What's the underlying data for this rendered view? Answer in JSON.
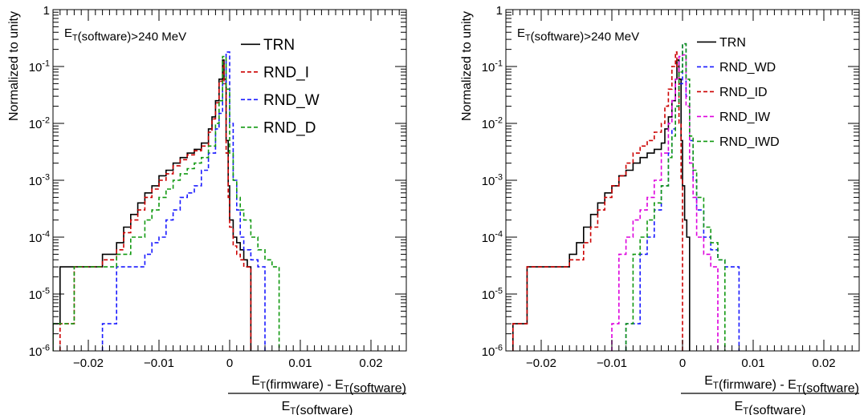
{
  "chart_data": [
    {
      "type": "line",
      "annotation": "E_T(software)>240 MeV",
      "ylabel": "Normalized to unity",
      "xlabel": {
        "numerator": "E_T(firmware) - E_T(software)",
        "denominator": "E_T(software)"
      },
      "xlim": [
        -0.025,
        0.025
      ],
      "ylim": [
        1e-06,
        1
      ],
      "yscale": "log",
      "xticks": [
        "−0.02",
        "−0.01",
        "0",
        "0.01",
        "0.02"
      ],
      "yticks": [
        "10^-6",
        "10^-5",
        "10^-4",
        "10^-3",
        "10^-2",
        "10^-1",
        "1"
      ],
      "legend_position": "top-right",
      "series": [
        {
          "name": "TRN",
          "color": "#000000",
          "style": "solid",
          "x": [
            -0.025,
            -0.024,
            -0.022,
            -0.02,
            -0.018,
            -0.016,
            -0.015,
            -0.014,
            -0.013,
            -0.012,
            -0.011,
            -0.01,
            -0.009,
            -0.008,
            -0.007,
            -0.006,
            -0.005,
            -0.004,
            -0.003,
            -0.0025,
            -0.002,
            -0.0015,
            -0.001,
            -0.0008,
            -0.0005,
            -0.0002,
            0,
            0.0005,
            0.001,
            0.0015,
            0.002,
            0.0025,
            0.003
          ],
          "y": [
            3e-06,
            3e-05,
            3e-05,
            3e-05,
            5e-05,
            8e-05,
            0.00015,
            0.00025,
            0.0004,
            0.0006,
            0.0008,
            0.0012,
            0.0015,
            0.002,
            0.0025,
            0.003,
            0.0035,
            0.0045,
            0.008,
            0.013,
            0.025,
            0.06,
            0.13,
            0.06,
            0.005,
            0.0008,
            0.0002,
            0.0001,
            8e-05,
            6e-05,
            4e-05,
            3e-05,
            3e-06
          ]
        },
        {
          "name": "RND_I",
          "color": "#cc0000",
          "style": "dashed",
          "x": [
            -0.024,
            -0.022,
            -0.02,
            -0.018,
            -0.016,
            -0.015,
            -0.014,
            -0.013,
            -0.012,
            -0.011,
            -0.01,
            -0.009,
            -0.008,
            -0.007,
            -0.006,
            -0.005,
            -0.004,
            -0.003,
            -0.0025,
            -0.002,
            -0.0015,
            -0.001,
            -0.0008,
            -0.0005,
            -0.0002,
            0,
            0.0005,
            0.001,
            0.0015,
            0.002,
            0.0025,
            0.003
          ],
          "y": [
            3e-06,
            3e-05,
            3e-05,
            4e-05,
            6e-05,
            0.00012,
            0.0002,
            0.0003,
            0.0005,
            0.0007,
            0.001,
            0.0013,
            0.0018,
            0.0023,
            0.0028,
            0.0033,
            0.004,
            0.007,
            0.012,
            0.023,
            0.055,
            0.12,
            0.05,
            0.003,
            0.0005,
            0.00015,
            7e-05,
            5e-05,
            4e-05,
            3e-05,
            3e-05,
            3e-06
          ]
        },
        {
          "name": "RND_W",
          "color": "#1a1aff",
          "style": "dashed",
          "x": [
            -0.018,
            -0.016,
            -0.014,
            -0.013,
            -0.012,
            -0.011,
            -0.01,
            -0.009,
            -0.008,
            -0.007,
            -0.006,
            -0.005,
            -0.004,
            -0.003,
            -0.002,
            -0.0015,
            -0.001,
            -0.0005,
            0,
            0.0005,
            0.001,
            0.0015,
            0.002,
            0.003,
            0.004,
            0.005
          ],
          "y": [
            3e-06,
            3e-05,
            3e-05,
            3e-05,
            5e-05,
            8e-05,
            0.0001,
            0.0002,
            0.0003,
            0.0005,
            0.0006,
            0.0008,
            0.0015,
            0.003,
            0.008,
            0.015,
            0.05,
            0.18,
            0.01,
            0.001,
            0.0003,
            0.0001,
            6e-05,
            4e-05,
            3e-05,
            3e-06
          ]
        },
        {
          "name": "RND_D",
          "color": "#119911",
          "style": "dashed",
          "x": [
            -0.025,
            -0.022,
            -0.02,
            -0.018,
            -0.016,
            -0.014,
            -0.012,
            -0.011,
            -0.01,
            -0.009,
            -0.008,
            -0.007,
            -0.006,
            -0.005,
            -0.004,
            -0.003,
            -0.002,
            -0.0015,
            -0.001,
            -0.0005,
            0,
            0.0005,
            0.001,
            0.0015,
            0.002,
            0.003,
            0.004,
            0.005,
            0.006,
            0.007
          ],
          "y": [
            3e-06,
            3e-05,
            3e-05,
            3e-05,
            5e-05,
            0.0001,
            0.0002,
            0.0003,
            0.0005,
            0.0007,
            0.001,
            0.0013,
            0.0016,
            0.002,
            0.0025,
            0.004,
            0.01,
            0.025,
            0.15,
            0.04,
            0.003,
            0.001,
            0.0005,
            0.0003,
            0.0002,
            0.0001,
            6e-05,
            4e-05,
            3e-05,
            3e-06
          ]
        }
      ]
    },
    {
      "type": "line",
      "annotation": "E_T(software)>240 MeV",
      "ylabel": "Normalized to unity",
      "xlabel": {
        "numerator": "E_T(firmware) - E_T(software)",
        "denominator": "E_T(software)"
      },
      "xlim": [
        -0.025,
        0.025
      ],
      "ylim": [
        1e-06,
        1
      ],
      "yscale": "log",
      "xticks": [
        "−0.02",
        "−0.01",
        "0",
        "0.01",
        "0.02"
      ],
      "yticks": [
        "10^-6",
        "10^-5",
        "10^-4",
        "10^-3",
        "10^-2",
        "10^-1",
        "1"
      ],
      "legend_position": "top-right",
      "series": [
        {
          "name": "TRN",
          "color": "#000000",
          "style": "solid",
          "x": [
            -0.024,
            -0.022,
            -0.02,
            -0.018,
            -0.016,
            -0.015,
            -0.014,
            -0.013,
            -0.012,
            -0.011,
            -0.01,
            -0.009,
            -0.008,
            -0.007,
            -0.006,
            -0.005,
            -0.004,
            -0.003,
            -0.0025,
            -0.002,
            -0.0015,
            -0.001,
            -0.0008,
            -0.0005,
            -0.0002,
            0,
            0.0003,
            0.0006,
            0.001
          ],
          "y": [
            3e-06,
            3e-05,
            3e-05,
            3e-05,
            5e-05,
            8e-05,
            0.00015,
            0.00025,
            0.0004,
            0.0006,
            0.0008,
            0.0012,
            0.0015,
            0.002,
            0.0025,
            0.003,
            0.0035,
            0.0045,
            0.008,
            0.013,
            0.025,
            0.06,
            0.13,
            0.06,
            0.005,
            0.0008,
            0.0002,
            0.0001,
            3e-06
          ]
        },
        {
          "name": "RND_WD",
          "color": "#1a1aff",
          "style": "dashed",
          "x": [
            -0.008,
            -0.006,
            -0.005,
            -0.004,
            -0.003,
            -0.002,
            -0.0015,
            -0.001,
            -0.0005,
            0,
            0.0005,
            0.001,
            0.0015,
            0.002,
            0.003,
            0.004,
            0.005,
            0.006,
            0.007,
            0.008
          ],
          "y": [
            3e-06,
            5e-05,
            0.0001,
            0.0003,
            0.0008,
            0.003,
            0.008,
            0.02,
            0.05,
            0.25,
            0.03,
            0.005,
            0.001,
            0.0003,
            0.0001,
            6e-05,
            4e-05,
            3e-05,
            3e-05,
            3e-06
          ]
        },
        {
          "name": "RND_ID",
          "color": "#cc0000",
          "style": "dashed",
          "x": [
            -0.024,
            -0.022,
            -0.02,
            -0.018,
            -0.016,
            -0.014,
            -0.013,
            -0.012,
            -0.011,
            -0.01,
            -0.009,
            -0.008,
            -0.007,
            -0.006,
            -0.005,
            -0.004,
            -0.003,
            -0.0025,
            -0.002,
            -0.0015,
            -0.001,
            -0.0008,
            -0.0005,
            -0.0002,
            0
          ],
          "y": [
            3e-06,
            3e-05,
            3e-05,
            3e-05,
            4e-05,
            8e-05,
            0.00015,
            0.0003,
            0.0005,
            0.0008,
            0.0012,
            0.002,
            0.003,
            0.004,
            0.005,
            0.007,
            0.01,
            0.02,
            0.04,
            0.1,
            0.18,
            0.1,
            0.01,
            0.001,
            3e-06
          ]
        },
        {
          "name": "RND_IW",
          "color": "#dd00dd",
          "style": "dashed",
          "x": [
            -0.01,
            -0.009,
            -0.008,
            -0.007,
            -0.006,
            -0.005,
            -0.004,
            -0.003,
            -0.002,
            -0.0015,
            -0.001,
            -0.0005,
            0,
            0.0005,
            0.001,
            0.0015,
            0.002,
            0.003,
            0.004,
            0.005
          ],
          "y": [
            3e-06,
            5e-05,
            0.0001,
            0.0002,
            0.0003,
            0.0005,
            0.001,
            0.003,
            0.01,
            0.025,
            0.06,
            0.15,
            0.16,
            0.02,
            0.002,
            0.0005,
            0.0001,
            5e-05,
            3e-05,
            3e-06
          ]
        },
        {
          "name": "RND_IWD",
          "color": "#119911",
          "style": "dashed",
          "x": [
            -0.008,
            -0.007,
            -0.006,
            -0.005,
            -0.004,
            -0.003,
            -0.002,
            -0.0015,
            -0.001,
            -0.0005,
            0,
            0.0005,
            0.001,
            0.0015,
            0.002,
            0.003,
            0.004,
            0.005,
            0.006
          ],
          "y": [
            3e-06,
            5e-05,
            0.0001,
            0.0002,
            0.0004,
            0.0008,
            0.0025,
            0.006,
            0.02,
            0.08,
            0.25,
            0.06,
            0.006,
            0.0015,
            0.0005,
            0.00015,
            8e-05,
            4e-05,
            3e-06
          ]
        }
      ]
    }
  ]
}
